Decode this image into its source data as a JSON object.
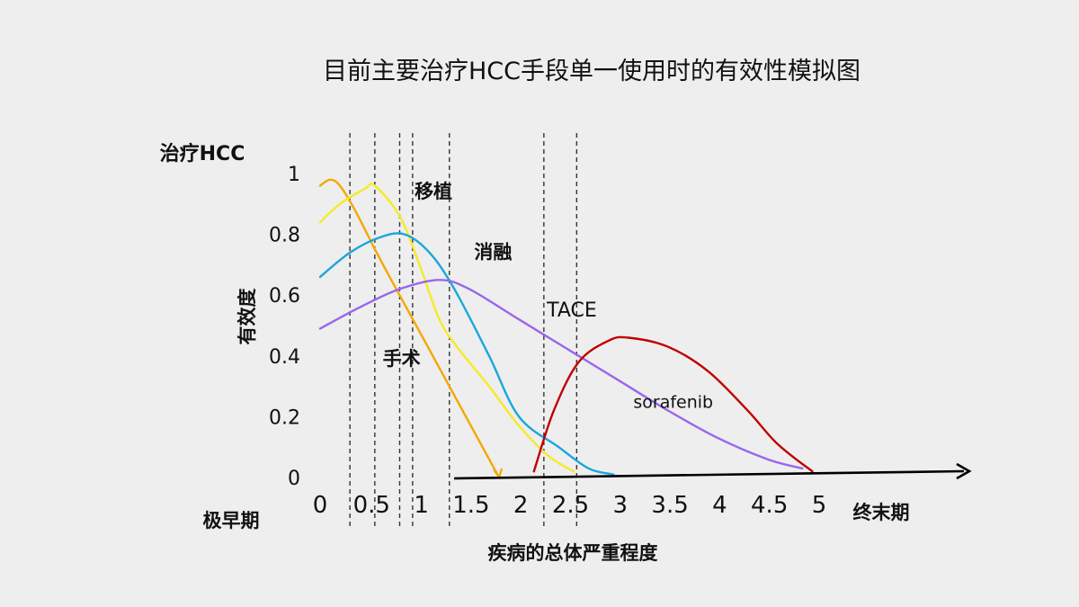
{
  "chart_data": {
    "type": "line",
    "title": "目前主要治疗HCC手段单一使用时的有效性模拟图",
    "y_top_label": "治疗HCC",
    "ylabel": "有效度",
    "xlabel": "疾病的总体严重程度",
    "x_start_label": "极早期",
    "x_end_label": "终末期",
    "x_ticks": [
      "0",
      "0.5",
      "1",
      "1.5",
      "2",
      "2.5",
      "3",
      "3.5",
      "4",
      "4.5",
      "5"
    ],
    "y_ticks": [
      "0",
      "0.2",
      "0.4",
      "0.6",
      "0.8",
      "1"
    ],
    "xlim": [
      0,
      5
    ],
    "ylim": [
      0,
      1
    ],
    "stage_dividers_x": [
      0.3,
      0.55,
      0.8,
      0.93,
      1.3,
      2.25,
      2.58
    ],
    "series": [
      {
        "name": "手术",
        "color": "#f5a800",
        "points": [
          [
            0,
            0.96
          ],
          [
            0.1,
            0.98
          ],
          [
            0.2,
            0.96
          ],
          [
            0.35,
            0.88
          ],
          [
            0.6,
            0.72
          ],
          [
            0.9,
            0.54
          ],
          [
            1.2,
            0.36
          ],
          [
            1.5,
            0.18
          ],
          [
            1.7,
            0.06
          ],
          [
            1.8,
            0.0
          ]
        ]
      },
      {
        "name": "移植",
        "color": "#f5ea2a",
        "points": [
          [
            0,
            0.84
          ],
          [
            0.2,
            0.9
          ],
          [
            0.45,
            0.95
          ],
          [
            0.55,
            0.96
          ],
          [
            0.8,
            0.86
          ],
          [
            1.0,
            0.7
          ],
          [
            1.2,
            0.52
          ],
          [
            1.4,
            0.42
          ],
          [
            1.7,
            0.3
          ],
          [
            2.0,
            0.17
          ],
          [
            2.3,
            0.07
          ],
          [
            2.55,
            0.02
          ]
        ]
      },
      {
        "name": "消融",
        "color": "#1aa6dc",
        "points": [
          [
            0,
            0.66
          ],
          [
            0.3,
            0.74
          ],
          [
            0.6,
            0.79
          ],
          [
            0.85,
            0.8
          ],
          [
            1.1,
            0.74
          ],
          [
            1.35,
            0.62
          ],
          [
            1.7,
            0.4
          ],
          [
            2.0,
            0.2
          ],
          [
            2.4,
            0.1
          ],
          [
            2.7,
            0.03
          ],
          [
            2.95,
            0.01
          ]
        ]
      },
      {
        "name": "TACE",
        "color": "#9966ee",
        "points": [
          [
            0,
            0.49
          ],
          [
            0.4,
            0.56
          ],
          [
            0.8,
            0.62
          ],
          [
            1.2,
            0.65
          ],
          [
            1.5,
            0.62
          ],
          [
            2.0,
            0.52
          ],
          [
            2.5,
            0.42
          ],
          [
            3.0,
            0.32
          ],
          [
            3.5,
            0.22
          ],
          [
            4.0,
            0.13
          ],
          [
            4.5,
            0.06
          ],
          [
            4.85,
            0.03
          ]
        ]
      },
      {
        "name": "sorafenib",
        "color": "#c00000",
        "points": [
          [
            2.15,
            0.02
          ],
          [
            2.35,
            0.22
          ],
          [
            2.6,
            0.38
          ],
          [
            2.9,
            0.45
          ],
          [
            3.1,
            0.46
          ],
          [
            3.5,
            0.43
          ],
          [
            3.9,
            0.35
          ],
          [
            4.3,
            0.22
          ],
          [
            4.6,
            0.11
          ],
          [
            4.95,
            0.02
          ]
        ]
      }
    ],
    "series_labels": [
      {
        "text": "移植",
        "x": 0.95,
        "y": 0.92,
        "style": "bold"
      },
      {
        "text": "消融",
        "x": 1.55,
        "y": 0.72,
        "style": "bold"
      },
      {
        "text": "TACE",
        "x": 2.28,
        "y": 0.53,
        "style": "normal"
      },
      {
        "text": "手术",
        "x": 0.63,
        "y": 0.37,
        "style": "bold"
      },
      {
        "text": "sorafenib",
        "x": 3.15,
        "y": 0.23,
        "style": "small"
      }
    ],
    "grid": false,
    "legend": "none"
  }
}
